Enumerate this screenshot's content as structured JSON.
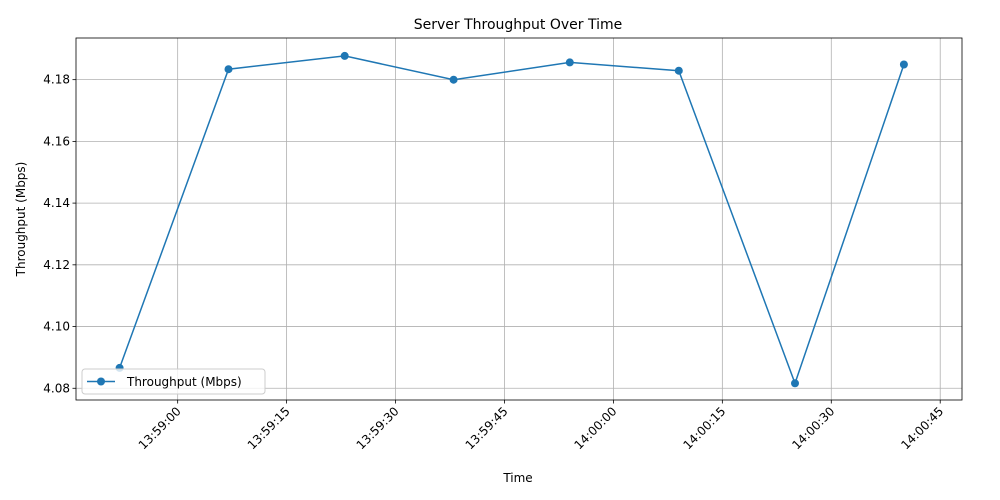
{
  "chart_data": {
    "type": "line",
    "title": "Server Throughput Over Time",
    "xlabel": "Time",
    "ylabel": "Throughput (Mbps)",
    "x_tick_labels": [
      "13:59:00",
      "13:59:15",
      "13:59:30",
      "13:59:45",
      "14:00:00",
      "14:00:15",
      "14:00:30",
      "14:00:45"
    ],
    "y_tick_labels": [
      "4.08",
      "4.10",
      "4.12",
      "4.14",
      "4.16",
      "4.18"
    ],
    "xlim": [
      "13:58:46",
      "14:00:48"
    ],
    "ylim": [
      4.0762,
      4.1935
    ],
    "grid": true,
    "legend_position": "lower left",
    "series": [
      {
        "name": "Throughput (Mbps)",
        "color": "#1f77b4",
        "marker": "circle",
        "x": [
          "13:58:52",
          "13:59:07",
          "13:59:23",
          "13:59:38",
          "13:59:54",
          "14:00:09",
          "14:00:25",
          "14:00:40"
        ],
        "y": [
          4.0866,
          4.1834,
          4.1877,
          4.18,
          4.1856,
          4.1829,
          4.0816,
          4.1849
        ]
      }
    ]
  }
}
